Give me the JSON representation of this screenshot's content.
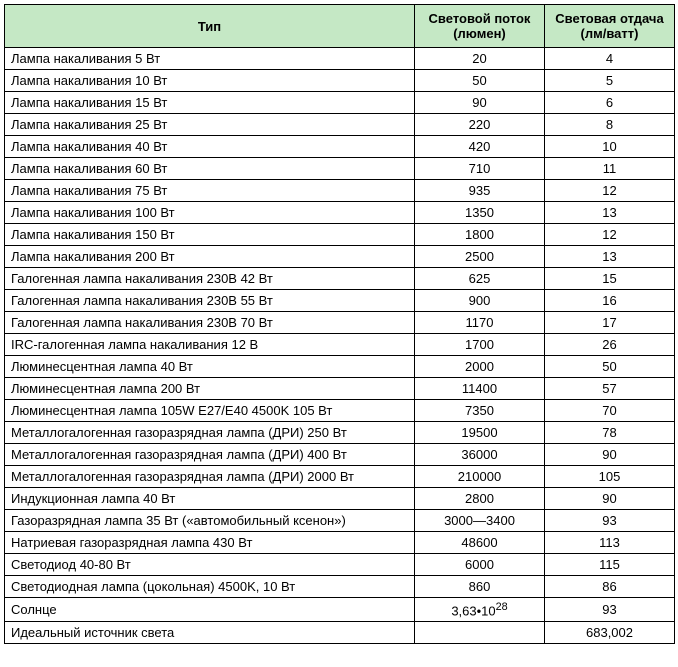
{
  "table": {
    "columns": [
      {
        "label": "Тип"
      },
      {
        "label": "Световой поток (люмен)"
      },
      {
        "label": "Световая отдача (лм/ватт)"
      }
    ],
    "rows": [
      {
        "type": "Лампа накаливания 5 Вт",
        "flux": "20",
        "efficacy": "4"
      },
      {
        "type": "Лампа накаливания 10 Вт",
        "flux": "50",
        "efficacy": "5"
      },
      {
        "type": "Лампа накаливания 15 Вт",
        "flux": "90",
        "efficacy": "6"
      },
      {
        "type": "Лампа накаливания 25 Вт",
        "flux": "220",
        "efficacy": "8"
      },
      {
        "type": "Лампа накаливания 40 Вт",
        "flux": "420",
        "efficacy": "10"
      },
      {
        "type": "Лампа накаливания 60 Вт",
        "flux": "710",
        "efficacy": "11"
      },
      {
        "type": "Лампа накаливания 75 Вт",
        "flux": "935",
        "efficacy": "12"
      },
      {
        "type": "Лампа накаливания 100 Вт",
        "flux": "1350",
        "efficacy": "13"
      },
      {
        "type": "Лампа накаливания 150 Вт",
        "flux": "1800",
        "efficacy": "12"
      },
      {
        "type": "Лампа накаливания 200 Вт",
        "flux": "2500",
        "efficacy": "13"
      },
      {
        "type": "Галогенная лампа накаливания 230В 42 Вт",
        "flux": "625",
        "efficacy": "15"
      },
      {
        "type": "Галогенная лампа накаливания 230В 55 Вт",
        "flux": "900",
        "efficacy": "16"
      },
      {
        "type": "Галогенная лампа накаливания 230В 70 Вт",
        "flux": "1170",
        "efficacy": "17"
      },
      {
        "type": "IRC-галогенная лампа накаливания 12 В",
        "flux": "1700",
        "efficacy": "26"
      },
      {
        "type": "Люминесцентная лампа 40 Вт",
        "flux": "2000",
        "efficacy": "50"
      },
      {
        "type": "Люминесцентная лампа 200 Вт",
        "flux": "11400",
        "efficacy": "57"
      },
      {
        "type": "Люминесцентная лампа 105W E27/E40 4500K 105 Вт",
        "flux": "7350",
        "efficacy": "70"
      },
      {
        "type": "Металлогалогенная газоразрядная лампа (ДРИ) 250 Вт",
        "flux": "19500",
        "efficacy": "78"
      },
      {
        "type": "Металлогалогенная газоразрядная лампа (ДРИ) 400 Вт",
        "flux": "36000",
        "efficacy": "90"
      },
      {
        "type": "Металлогалогенная газоразрядная лампа (ДРИ) 2000 Вт",
        "flux": "210000",
        "efficacy": "105"
      },
      {
        "type": "Индукционная лампа 40 Вт",
        "flux": "2800",
        "efficacy": "90"
      },
      {
        "type": "Газоразрядная лампа 35 Вт («автомобильный ксенон»)",
        "flux": "3000—3400",
        "efficacy": "93"
      },
      {
        "type": "Натриевая газоразрядная лампа 430 Вт",
        "flux": "48600",
        "efficacy": "113"
      },
      {
        "type": "Светодиод 40-80 Вт",
        "flux": "6000",
        "efficacy": "115"
      },
      {
        "type": "Светодиодная лампа (цокольная) 4500K, 10 Вт",
        "flux": "860",
        "efficacy": "86"
      },
      {
        "type": "Солнце",
        "flux_html": "3,63•10<sup>28</sup>",
        "efficacy": "93"
      },
      {
        "type": "Идеальный источник света",
        "flux": "",
        "efficacy": "683,002"
      }
    ],
    "header_bg": "#c5e8c5",
    "border_color": "#000000",
    "font_family": "Arial",
    "font_size": 13
  }
}
